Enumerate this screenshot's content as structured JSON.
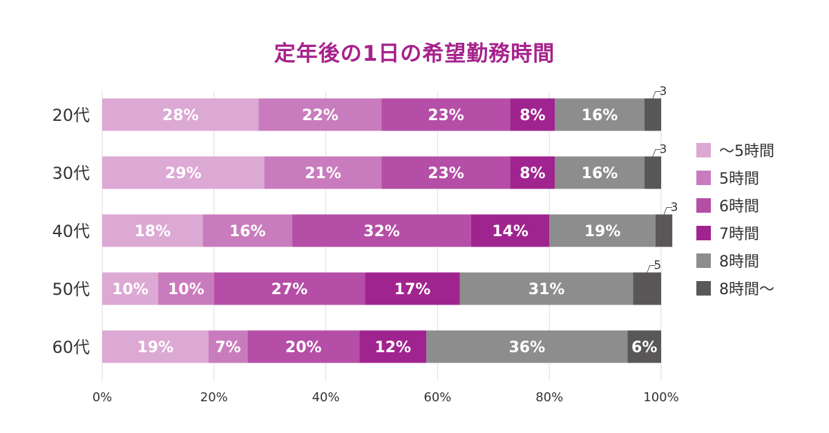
{
  "chart_data": {
    "type": "bar",
    "orientation": "horizontal",
    "stacked": true,
    "title": "定年後の1日の希望勤務時間",
    "categories": [
      "20代",
      "30代",
      "40代",
      "50代",
      "60代"
    ],
    "series": [
      {
        "name": "〜5時間",
        "color": "#dca8d4",
        "values": [
          28,
          29,
          18,
          10,
          19
        ],
        "labels": [
          "28%",
          "29%",
          "18%",
          "10%",
          "19%"
        ]
      },
      {
        "name": "5時間",
        "color": "#c97cbd",
        "values": [
          22,
          21,
          16,
          10,
          7
        ],
        "labels": [
          "22%",
          "21%",
          "16%",
          "10%",
          "7%"
        ]
      },
      {
        "name": "6時間",
        "color": "#b54ea6",
        "values": [
          23,
          23,
          32,
          27,
          20
        ],
        "labels": [
          "23%",
          "23%",
          "32%",
          "27%",
          "20%"
        ]
      },
      {
        "name": "7時間",
        "color": "#a0248f",
        "values": [
          8,
          8,
          14,
          17,
          12
        ],
        "labels": [
          "8%",
          "8%",
          "14%",
          "17%",
          "12%"
        ]
      },
      {
        "name": "8時間",
        "color": "#8d8d8d",
        "values": [
          16,
          16,
          19,
          31,
          36
        ],
        "labels": [
          "16%",
          "16%",
          "19%",
          "31%",
          "36%"
        ]
      },
      {
        "name": "8時間〜",
        "color": "#595757",
        "values": [
          3,
          3,
          3,
          5,
          6
        ],
        "labels": [
          "3",
          "3",
          "3",
          "5",
          "6%"
        ]
      }
    ],
    "xticks": [
      "0%",
      "20%",
      "40%",
      "60%",
      "80%",
      "100%"
    ],
    "xlim": [
      0,
      100
    ],
    "grid": true,
    "legend": "right",
    "title_color": "#a6228c"
  }
}
